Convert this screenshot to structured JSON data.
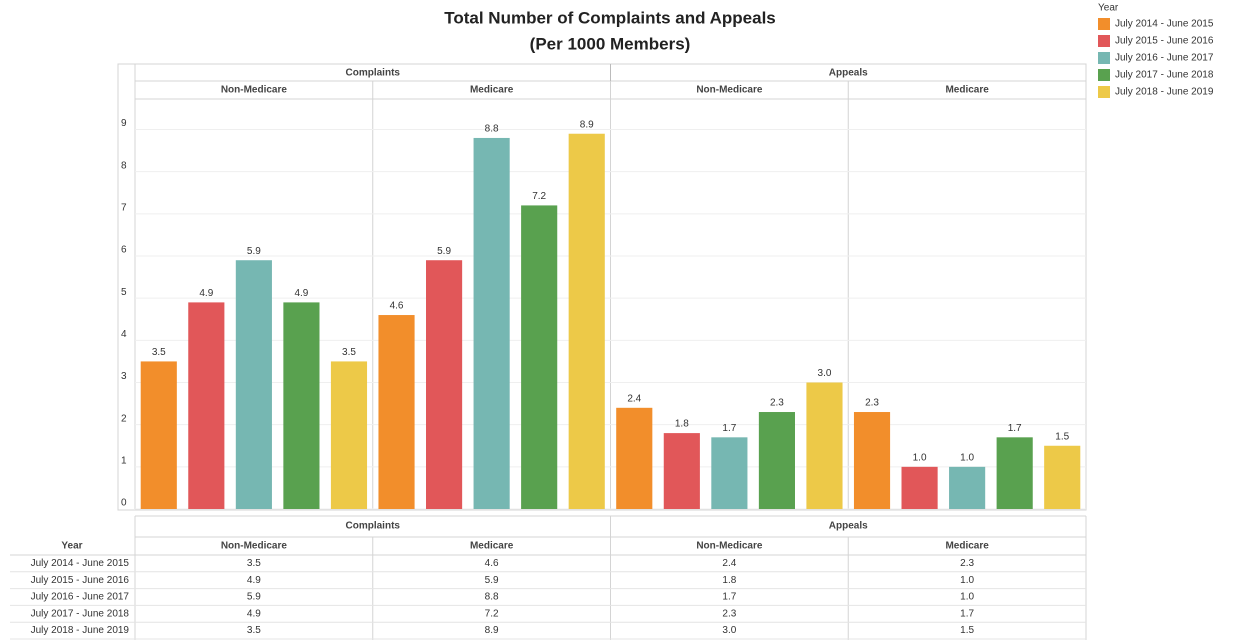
{
  "chart_data": {
    "type": "bar",
    "title": "Total Number of Complaints and Appeals",
    "subtitle": "(Per 1000 Members)",
    "groups": [
      "Complaints",
      "Appeals"
    ],
    "categories": [
      "Non-Medicare",
      "Medicare",
      "Non-Medicare",
      "Medicare"
    ],
    "legend_title": "Year",
    "legend": "right",
    "grid": true,
    "ylim": [
      0,
      9.7
    ],
    "yticks": [
      0,
      1,
      2,
      3,
      4,
      5,
      6,
      7,
      8,
      9
    ],
    "series": [
      {
        "name": "July 2014 - June 2015",
        "color": "#f28e2b",
        "values": [
          3.5,
          4.6,
          2.4,
          2.3
        ],
        "value_labels": [
          "3.5",
          "4.6",
          "2.4",
          "2.3"
        ]
      },
      {
        "name": "July 2015 - June 2016",
        "color": "#e15759",
        "values": [
          4.9,
          5.9,
          1.8,
          1.0
        ],
        "value_labels": [
          "4.9",
          "5.9",
          "1.8",
          "1.0"
        ]
      },
      {
        "name": "July 2016 - June 2017",
        "color": "#76b7b2",
        "values": [
          5.9,
          8.8,
          1.7,
          1.0
        ],
        "value_labels": [
          "5.9",
          "8.8",
          "1.7",
          "1.0"
        ]
      },
      {
        "name": "July 2017 - June 2018",
        "color": "#59a14f",
        "values": [
          4.9,
          7.2,
          2.3,
          1.7
        ],
        "value_labels": [
          "4.9",
          "7.2",
          "2.3",
          "1.7"
        ]
      },
      {
        "name": "July 2018 - June 2019",
        "color": "#edc948",
        "values": [
          3.5,
          8.9,
          3.0,
          1.5
        ],
        "value_labels": [
          "3.5",
          "8.9",
          "3.0",
          "1.5"
        ]
      }
    ]
  },
  "table": {
    "year_header": "Year",
    "groups": [
      "Complaints",
      "Appeals"
    ],
    "subgroups": [
      "Non-Medicare",
      "Medicare",
      "Non-Medicare",
      "Medicare"
    ],
    "rows": [
      [
        "July 2014 - June 2015",
        "3.5",
        "4.6",
        "2.4",
        "2.3"
      ],
      [
        "July 2015 - June 2016",
        "4.9",
        "5.9",
        "1.8",
        "1.0"
      ],
      [
        "July 2016 - June 2017",
        "5.9",
        "8.8",
        "1.7",
        "1.0"
      ],
      [
        "July 2017 - June 2018",
        "4.9",
        "7.2",
        "2.3",
        "1.7"
      ],
      [
        "July 2018 - June 2019",
        "3.5",
        "8.9",
        "3.0",
        "1.5"
      ]
    ]
  }
}
